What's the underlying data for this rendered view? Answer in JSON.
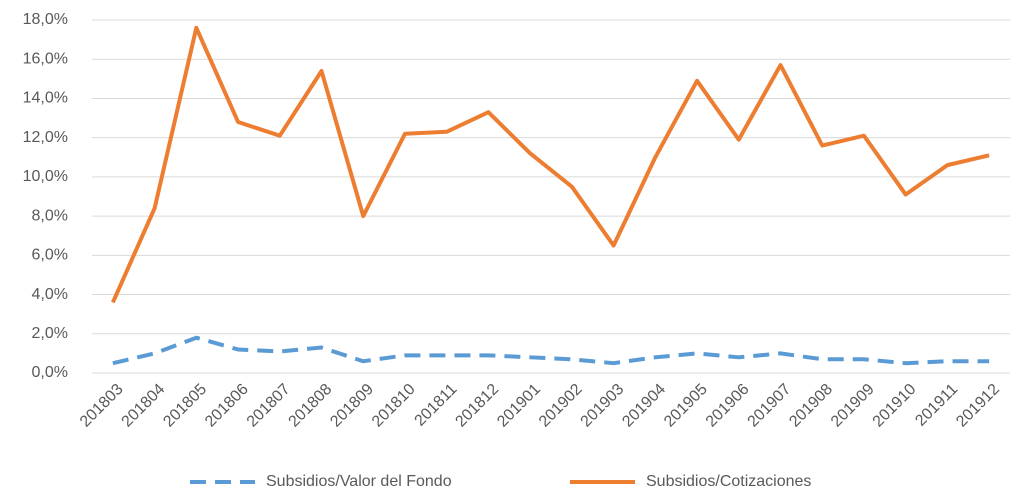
{
  "chart_data": {
    "type": "line",
    "categories": [
      "201803",
      "201804",
      "201805",
      "201806",
      "201807",
      "201808",
      "201809",
      "201810",
      "201811",
      "201812",
      "201901",
      "201902",
      "201903",
      "201904",
      "201905",
      "201906",
      "201907",
      "201908",
      "201909",
      "201910",
      "201911",
      "201912"
    ],
    "series": [
      {
        "name": "Subsidios/Valor del Fondo",
        "color": "#5b9bd5",
        "dashed": true,
        "values": [
          0.5,
          1.0,
          1.8,
          1.2,
          1.1,
          1.3,
          0.6,
          0.9,
          0.9,
          0.9,
          0.8,
          0.7,
          0.5,
          0.8,
          1.0,
          0.8,
          1.0,
          0.7,
          0.7,
          0.5,
          0.6,
          0.6
        ]
      },
      {
        "name": "Subsidios/Cotizaciones",
        "color": "#ed7d31",
        "dashed": false,
        "values": [
          3.6,
          8.4,
          17.6,
          12.8,
          12.1,
          15.4,
          8.0,
          12.2,
          12.3,
          13.3,
          11.2,
          9.5,
          6.5,
          11.0,
          14.9,
          11.9,
          15.7,
          11.6,
          12.1,
          9.1,
          10.6,
          11.1
        ]
      }
    ],
    "ylim": [
      0,
      18
    ],
    "yticks": [
      {
        "value": 0,
        "label": "0,0%"
      },
      {
        "value": 2,
        "label": "2,0%"
      },
      {
        "value": 4,
        "label": "4,0%"
      },
      {
        "value": 6,
        "label": "6,0%"
      },
      {
        "value": 8,
        "label": "8,0%"
      },
      {
        "value": 10,
        "label": "10,0%"
      },
      {
        "value": 12,
        "label": "12,0%"
      },
      {
        "value": 14,
        "label": "14,0%"
      },
      {
        "value": 16,
        "label": "16,0%"
      },
      {
        "value": 18,
        "label": "18,0%"
      }
    ],
    "grid": true,
    "legend": "bottom"
  }
}
